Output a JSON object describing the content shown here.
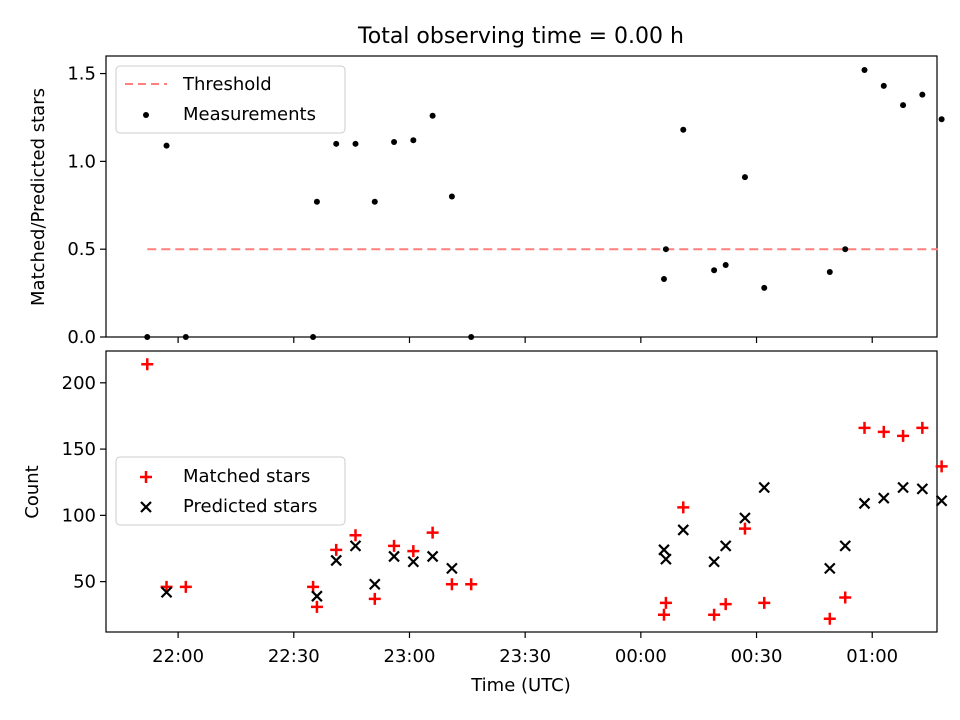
{
  "title": "Total observing time = 0.00 h",
  "x_axis": {
    "label": "Time (UTC)",
    "range_minutes_from_2200": [
      -18.7,
      196.8
    ],
    "ticks": [
      {
        "t": 0,
        "label": "22:00"
      },
      {
        "t": 30,
        "label": "22:30"
      },
      {
        "t": 60,
        "label": "23:00"
      },
      {
        "t": 90,
        "label": "23:30"
      },
      {
        "t": 120,
        "label": "00:00"
      },
      {
        "t": 150,
        "label": "00:30"
      },
      {
        "t": 180,
        "label": "01:00"
      }
    ]
  },
  "chart_data": [
    {
      "type": "scatter",
      "panel": "top",
      "ylabel": "Matched/Predicted stars",
      "ylim": [
        0,
        1.6
      ],
      "yticks": [
        {
          "v": 0.0,
          "label": "0.0"
        },
        {
          "v": 0.5,
          "label": "0.5"
        },
        {
          "v": 1.0,
          "label": "1.0"
        },
        {
          "v": 1.5,
          "label": "1.5"
        }
      ],
      "legend_position": "top-left",
      "threshold": {
        "name": "Threshold",
        "value": 0.5,
        "x_range": [
          -8,
          197
        ],
        "color": "#ff7f7f",
        "style": "dashed"
      },
      "series": [
        {
          "name": "Measurements",
          "marker": "dot",
          "color": "#000000",
          "points": [
            [
              -8,
              0.0
            ],
            [
              -3,
              1.09
            ],
            [
              2,
              0.0
            ],
            [
              35,
              0.0
            ],
            [
              36,
              0.77
            ],
            [
              41,
              1.1
            ],
            [
              46,
              1.1
            ],
            [
              51,
              0.77
            ],
            [
              56,
              1.11
            ],
            [
              61,
              1.12
            ],
            [
              66,
              1.26
            ],
            [
              71,
              0.8
            ],
            [
              76,
              0.0
            ],
            [
              126,
              0.33
            ],
            [
              126.5,
              0.5
            ],
            [
              131,
              1.18
            ],
            [
              139,
              0.38
            ],
            [
              142,
              0.41
            ],
            [
              147,
              0.91
            ],
            [
              152,
              0.28
            ],
            [
              169,
              0.37
            ],
            [
              173,
              0.5
            ],
            [
              178,
              1.52
            ],
            [
              183,
              1.43
            ],
            [
              188,
              1.32
            ],
            [
              193,
              1.38
            ],
            [
              198,
              1.24
            ]
          ]
        }
      ]
    },
    {
      "type": "scatter",
      "panel": "bottom",
      "ylabel": "Count",
      "ylim": [
        12,
        224
      ],
      "yticks": [
        {
          "v": 50,
          "label": "50"
        },
        {
          "v": 100,
          "label": "100"
        },
        {
          "v": 150,
          "label": "150"
        },
        {
          "v": 200,
          "label": "200"
        }
      ],
      "legend_position": "center-left",
      "series": [
        {
          "name": "Matched stars",
          "marker": "plus",
          "color": "#ff0000",
          "points": [
            [
              -8,
              214
            ],
            [
              -3,
              46
            ],
            [
              2,
              46
            ],
            [
              35,
              46
            ],
            [
              36,
              31
            ],
            [
              41,
              74
            ],
            [
              46,
              85
            ],
            [
              51,
              37
            ],
            [
              56,
              77
            ],
            [
              61,
              73
            ],
            [
              66,
              87
            ],
            [
              71,
              48
            ],
            [
              76,
              48
            ],
            [
              126,
              25
            ],
            [
              126.5,
              34
            ],
            [
              131,
              106
            ],
            [
              139,
              25
            ],
            [
              142,
              33
            ],
            [
              147,
              90
            ],
            [
              152,
              34
            ],
            [
              169,
              22
            ],
            [
              173,
              38
            ],
            [
              178,
              166
            ],
            [
              183,
              163
            ],
            [
              188,
              160
            ],
            [
              193,
              166
            ],
            [
              198,
              137
            ]
          ]
        },
        {
          "name": "Predicted stars",
          "marker": "x",
          "color": "#000000",
          "points": [
            [
              -3,
              42
            ],
            [
              36,
              39
            ],
            [
              41,
              66
            ],
            [
              46,
              77
            ],
            [
              51,
              48
            ],
            [
              56,
              69
            ],
            [
              61,
              65
            ],
            [
              66,
              69
            ],
            [
              71,
              60
            ],
            [
              126,
              74
            ],
            [
              126.5,
              67
            ],
            [
              131,
              89
            ],
            [
              139,
              65
            ],
            [
              142,
              77
            ],
            [
              147,
              98
            ],
            [
              152,
              121
            ],
            [
              169,
              60
            ],
            [
              173,
              77
            ],
            [
              178,
              109
            ],
            [
              183,
              113
            ],
            [
              188,
              121
            ],
            [
              193,
              120
            ],
            [
              198,
              111
            ]
          ]
        }
      ]
    }
  ]
}
